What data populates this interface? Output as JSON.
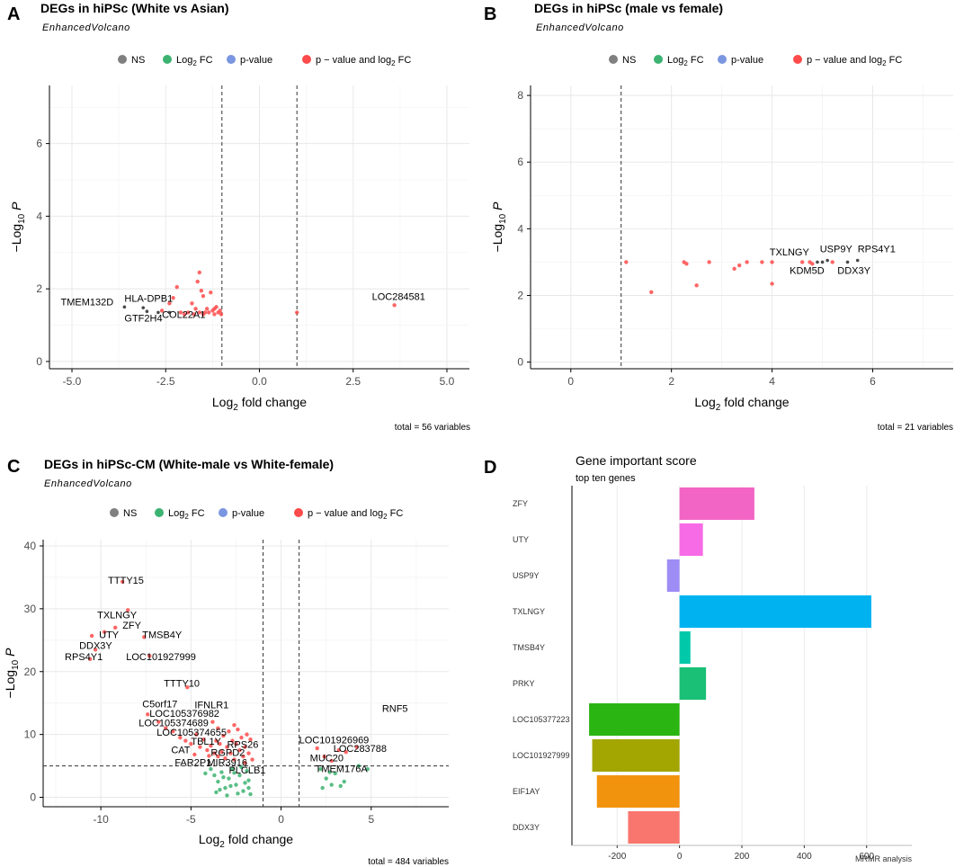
{
  "figure": {
    "panel_letters": [
      "A",
      "B",
      "C",
      "D"
    ],
    "subtitle": "EnhancedVolcano",
    "x_label_pre": "Log",
    "x_label_sub": "2",
    "x_label_post": " fold change",
    "y_label_pre": "−Log",
    "y_label_sub": "10",
    "y_label_post": " P",
    "legend": [
      "NS",
      "Log2 FC",
      "p-value",
      "p − value and log2 FC"
    ],
    "legend_colors": [
      "#808080",
      "#3CB371",
      "#7B96E0",
      "#FF4B4B"
    ]
  },
  "chart_data": [
    {
      "panel": "A",
      "type": "scatter",
      "title": "DEGs in hiPSc (White vs Asian)",
      "xlabel": "Log2 fold change",
      "ylabel": "−Log10 P",
      "xlim": [
        -5.6,
        5.6
      ],
      "ylim": [
        -0.2,
        7.6
      ],
      "xticks": [
        -5.0,
        -2.5,
        0.0,
        2.5,
        5.0
      ],
      "xtick_labels": [
        "-5.0",
        "-2.5",
        "0.0",
        "2.5",
        "5.0"
      ],
      "yticks": [
        0,
        2,
        4,
        6
      ],
      "vlines": [
        -1,
        1
      ],
      "hline": null,
      "caption": "total = 56 variables",
      "points": [
        {
          "x": -3.6,
          "y": 1.5,
          "c": "ns"
        },
        {
          "x": -3.1,
          "y": 1.48,
          "c": "ns"
        },
        {
          "x": -3.0,
          "y": 1.38,
          "c": "ns"
        },
        {
          "x": -2.7,
          "y": 1.35,
          "c": "ns"
        },
        {
          "x": -2.4,
          "y": 1.35,
          "c": "ns"
        },
        {
          "x": -2.6,
          "y": 1.4,
          "c": "sig"
        },
        {
          "x": -2.4,
          "y": 1.6,
          "c": "sig"
        },
        {
          "x": -2.3,
          "y": 1.75,
          "c": "sig"
        },
        {
          "x": -2.2,
          "y": 2.05,
          "c": "sig"
        },
        {
          "x": -2.1,
          "y": 1.35,
          "c": "sig"
        },
        {
          "x": -2.0,
          "y": 1.3,
          "c": "sig"
        },
        {
          "x": -1.9,
          "y": 1.35,
          "c": "sig"
        },
        {
          "x": -1.8,
          "y": 1.6,
          "c": "sig"
        },
        {
          "x": -1.75,
          "y": 1.3,
          "c": "sig"
        },
        {
          "x": -1.7,
          "y": 1.45,
          "c": "sig"
        },
        {
          "x": -1.65,
          "y": 2.2,
          "c": "sig"
        },
        {
          "x": -1.6,
          "y": 2.45,
          "c": "sig"
        },
        {
          "x": -1.55,
          "y": 1.95,
          "c": "sig"
        },
        {
          "x": -1.5,
          "y": 1.8,
          "c": "sig"
        },
        {
          "x": -1.45,
          "y": 1.35,
          "c": "sig"
        },
        {
          "x": -1.4,
          "y": 1.45,
          "c": "sig"
        },
        {
          "x": -1.35,
          "y": 1.35,
          "c": "sig"
        },
        {
          "x": -1.3,
          "y": 1.9,
          "c": "sig"
        },
        {
          "x": -1.25,
          "y": 1.4,
          "c": "sig"
        },
        {
          "x": -1.2,
          "y": 1.3,
          "c": "sig"
        },
        {
          "x": -1.15,
          "y": 1.5,
          "c": "sig"
        },
        {
          "x": -1.1,
          "y": 1.35,
          "c": "sig"
        },
        {
          "x": -1.05,
          "y": 1.4,
          "c": "sig"
        },
        {
          "x": -1.02,
          "y": 1.3,
          "c": "sig"
        },
        {
          "x": -1.5,
          "y": 1.3,
          "c": "sig"
        },
        {
          "x": -1.6,
          "y": 1.35,
          "c": "sig"
        },
        {
          "x": -1.2,
          "y": 1.45,
          "c": "sig"
        },
        {
          "x": 1.0,
          "y": 1.35,
          "c": "sig"
        },
        {
          "x": 3.6,
          "y": 1.55,
          "c": "sig"
        }
      ],
      "labels": [
        {
          "text": "TMEM132D",
          "x": -5.3,
          "y": 1.55
        },
        {
          "text": "HLA-DPB1",
          "x": -3.6,
          "y": 1.65
        },
        {
          "text": "GTF2H4",
          "x": -3.6,
          "y": 1.1
        },
        {
          "text": "COL22A1",
          "x": -2.6,
          "y": 1.2
        },
        {
          "text": "LOC284581",
          "x": 3.0,
          "y": 1.7
        }
      ]
    },
    {
      "panel": "B",
      "type": "scatter",
      "title": "DEGs in hiPSc (male vs female)",
      "xlabel": "Log2 fold change",
      "ylabel": "−Log10 P",
      "xlim": [
        -0.8,
        7.6
      ],
      "ylim": [
        -0.2,
        8.3
      ],
      "xticks": [
        0,
        2,
        4,
        6
      ],
      "xtick_labels": [
        "0",
        "2",
        "4",
        "6"
      ],
      "yticks": [
        0,
        2,
        4,
        6,
        8
      ],
      "vlines": [
        1
      ],
      "hline": null,
      "caption": "total = 21 variables",
      "points": [
        {
          "x": 1.1,
          "y": 3.0,
          "c": "sig"
        },
        {
          "x": 1.6,
          "y": 2.1,
          "c": "sig"
        },
        {
          "x": 2.25,
          "y": 3.0,
          "c": "sig"
        },
        {
          "x": 2.3,
          "y": 2.95,
          "c": "sig"
        },
        {
          "x": 2.5,
          "y": 2.3,
          "c": "sig"
        },
        {
          "x": 2.75,
          "y": 3.0,
          "c": "sig"
        },
        {
          "x": 3.25,
          "y": 2.8,
          "c": "sig"
        },
        {
          "x": 3.35,
          "y": 2.9,
          "c": "sig"
        },
        {
          "x": 3.5,
          "y": 3.0,
          "c": "sig"
        },
        {
          "x": 3.8,
          "y": 3.0,
          "c": "sig"
        },
        {
          "x": 4.0,
          "y": 2.35,
          "c": "sig"
        },
        {
          "x": 4.0,
          "y": 3.0,
          "c": "sig"
        },
        {
          "x": 4.6,
          "y": 3.0,
          "c": "sig"
        },
        {
          "x": 4.75,
          "y": 3.0,
          "c": "sig"
        },
        {
          "x": 4.9,
          "y": 3.0,
          "c": "ns"
        },
        {
          "x": 5.0,
          "y": 3.0,
          "c": "ns"
        },
        {
          "x": 5.1,
          "y": 3.05,
          "c": "ns"
        },
        {
          "x": 5.5,
          "y": 3.0,
          "c": "ns"
        },
        {
          "x": 5.7,
          "y": 3.05,
          "c": "ns"
        },
        {
          "x": 5.2,
          "y": 3.0,
          "c": "sig"
        },
        {
          "x": 4.8,
          "y": 2.95,
          "c": "sig"
        }
      ],
      "labels": [
        {
          "text": "TXLNGY",
          "x": 3.95,
          "y": 3.2
        },
        {
          "text": "USP9Y",
          "x": 4.95,
          "y": 3.3
        },
        {
          "text": "RPS4Y1",
          "x": 5.7,
          "y": 3.3
        },
        {
          "text": "KDM5D",
          "x": 4.35,
          "y": 2.65
        },
        {
          "text": "DDX3Y",
          "x": 5.3,
          "y": 2.65
        }
      ]
    },
    {
      "panel": "C",
      "type": "scatter",
      "title": "DEGs in hiPSc-CM (White-male vs White-female)",
      "xlabel": "Log2 fold change",
      "ylabel": "−Log10 P",
      "xlim": [
        -13.2,
        9.3
      ],
      "ylim": [
        -1.5,
        41
      ],
      "xticks": [
        -10,
        -5,
        0,
        5
      ],
      "xtick_labels": [
        "-10",
        "-5",
        "0",
        "5"
      ],
      "yticks": [
        0,
        10,
        20,
        30,
        40
      ],
      "vlines": [
        -1,
        1
      ],
      "hline": 5.0,
      "caption": "total = 484 variables",
      "points": [
        {
          "x": -8.8,
          "y": 34.3,
          "c": "sig"
        },
        {
          "x": -8.5,
          "y": 29.8,
          "c": "sig"
        },
        {
          "x": -9.2,
          "y": 27.0,
          "c": "sig"
        },
        {
          "x": -9.8,
          "y": 26.3,
          "c": "sig"
        },
        {
          "x": -10.5,
          "y": 25.7,
          "c": "sig"
        },
        {
          "x": -10.6,
          "y": 22.0,
          "c": "sig"
        },
        {
          "x": -10.3,
          "y": 23.5,
          "c": "sig"
        },
        {
          "x": -7.6,
          "y": 25.5,
          "c": "sig"
        },
        {
          "x": -7.3,
          "y": 22.5,
          "c": "sig"
        },
        {
          "x": -5.2,
          "y": 17.5,
          "c": "sig"
        },
        {
          "x": -7.4,
          "y": 13.2,
          "c": "sig"
        },
        {
          "x": -6.8,
          "y": 12.0,
          "c": "sig"
        },
        {
          "x": -6.4,
          "y": 11.0,
          "c": "sig"
        },
        {
          "x": -6.0,
          "y": 10.5,
          "c": "sig"
        },
        {
          "x": -5.6,
          "y": 9.5,
          "c": "sig"
        },
        {
          "x": -5.3,
          "y": 9.0,
          "c": "sig"
        },
        {
          "x": -5.0,
          "y": 8.5,
          "c": "sig"
        },
        {
          "x": -4.7,
          "y": 10.0,
          "c": "sig"
        },
        {
          "x": -4.5,
          "y": 8.0,
          "c": "sig"
        },
        {
          "x": -4.3,
          "y": 9.2,
          "c": "sig"
        },
        {
          "x": -4.1,
          "y": 7.5,
          "c": "sig"
        },
        {
          "x": -4.0,
          "y": 6.6,
          "c": "sig"
        },
        {
          "x": -3.9,
          "y": 8.2,
          "c": "sig"
        },
        {
          "x": -3.8,
          "y": 12.0,
          "c": "sig"
        },
        {
          "x": -3.7,
          "y": 7.0,
          "c": "sig"
        },
        {
          "x": -3.6,
          "y": 9.0,
          "c": "sig"
        },
        {
          "x": -3.5,
          "y": 6.5,
          "c": "sig"
        },
        {
          "x": -3.4,
          "y": 8.5,
          "c": "sig"
        },
        {
          "x": -3.3,
          "y": 7.2,
          "c": "sig"
        },
        {
          "x": -3.2,
          "y": 9.8,
          "c": "sig"
        },
        {
          "x": -3.1,
          "y": 6.2,
          "c": "sig"
        },
        {
          "x": -3.0,
          "y": 8.0,
          "c": "sig"
        },
        {
          "x": -2.9,
          "y": 10.5,
          "c": "sig"
        },
        {
          "x": -2.8,
          "y": 7.0,
          "c": "sig"
        },
        {
          "x": -2.7,
          "y": 9.0,
          "c": "sig"
        },
        {
          "x": -2.6,
          "y": 6.0,
          "c": "sig"
        },
        {
          "x": -2.5,
          "y": 8.5,
          "c": "sig"
        },
        {
          "x": -2.4,
          "y": 10.8,
          "c": "sig"
        },
        {
          "x": -2.3,
          "y": 7.5,
          "c": "sig"
        },
        {
          "x": -2.2,
          "y": 9.5,
          "c": "sig"
        },
        {
          "x": -2.1,
          "y": 6.5,
          "c": "sig"
        },
        {
          "x": -2.0,
          "y": 8.0,
          "c": "sig"
        },
        {
          "x": -1.9,
          "y": 10.0,
          "c": "sig"
        },
        {
          "x": -1.8,
          "y": 7.0,
          "c": "sig"
        },
        {
          "x": -1.7,
          "y": 9.2,
          "c": "sig"
        },
        {
          "x": -1.6,
          "y": 6.0,
          "c": "sig"
        },
        {
          "x": -3.5,
          "y": 11.0,
          "c": "sig"
        },
        {
          "x": -2.6,
          "y": 11.5,
          "c": "sig"
        },
        {
          "x": -4.8,
          "y": 6.8,
          "c": "sig"
        },
        {
          "x": -2.0,
          "y": 5.5,
          "c": "sig"
        },
        {
          "x": -3.9,
          "y": 4.5,
          "c": "fc"
        },
        {
          "x": -3.7,
          "y": 3.5,
          "c": "fc"
        },
        {
          "x": -3.5,
          "y": 2.5,
          "c": "fc"
        },
        {
          "x": -3.3,
          "y": 4.0,
          "c": "fc"
        },
        {
          "x": -3.1,
          "y": 1.5,
          "c": "fc"
        },
        {
          "x": -2.9,
          "y": 3.0,
          "c": "fc"
        },
        {
          "x": -2.7,
          "y": 4.5,
          "c": "fc"
        },
        {
          "x": -2.5,
          "y": 2.0,
          "c": "fc"
        },
        {
          "x": -2.3,
          "y": 3.5,
          "c": "fc"
        },
        {
          "x": -2.1,
          "y": 1.0,
          "c": "fc"
        },
        {
          "x": -1.9,
          "y": 4.2,
          "c": "fc"
        },
        {
          "x": -1.8,
          "y": 2.7,
          "c": "fc"
        },
        {
          "x": -1.7,
          "y": 0.5,
          "c": "fc"
        },
        {
          "x": -3.6,
          "y": 0.8,
          "c": "fc"
        },
        {
          "x": -3.0,
          "y": 0.3,
          "c": "fc"
        },
        {
          "x": -2.4,
          "y": 0.6,
          "c": "fc"
        },
        {
          "x": -2.2,
          "y": 4.8,
          "c": "fc"
        },
        {
          "x": -2.8,
          "y": 1.8,
          "c": "fc"
        },
        {
          "x": -3.2,
          "y": 3.2,
          "c": "fc"
        },
        {
          "x": -4.2,
          "y": 3.8,
          "c": "fc"
        },
        {
          "x": -1.8,
          "y": 1.5,
          "c": "fc"
        },
        {
          "x": -2.6,
          "y": 3.9,
          "c": "fc"
        },
        {
          "x": -2.0,
          "y": 2.3,
          "c": "fc"
        },
        {
          "x": -3.4,
          "y": 1.2,
          "c": "fc"
        },
        {
          "x": 2.0,
          "y": 7.8,
          "c": "sig"
        },
        {
          "x": 2.4,
          "y": 6.5,
          "c": "sig"
        },
        {
          "x": 3.2,
          "y": 7.5,
          "c": "sig"
        },
        {
          "x": 3.6,
          "y": 7.2,
          "c": "sig"
        },
        {
          "x": 4.2,
          "y": 8.0,
          "c": "sig"
        },
        {
          "x": 2.8,
          "y": 5.8,
          "c": "sig"
        },
        {
          "x": 2.2,
          "y": 4.5,
          "c": "fc"
        },
        {
          "x": 2.5,
          "y": 3.0,
          "c": "fc"
        },
        {
          "x": 2.8,
          "y": 2.0,
          "c": "fc"
        },
        {
          "x": 3.0,
          "y": 3.8,
          "c": "fc"
        },
        {
          "x": 3.5,
          "y": 2.5,
          "c": "fc"
        },
        {
          "x": 4.3,
          "y": 5.0,
          "c": "fc"
        },
        {
          "x": 4.8,
          "y": 4.5,
          "c": "fc"
        },
        {
          "x": 2.3,
          "y": 1.5,
          "c": "fc"
        },
        {
          "x": 2.7,
          "y": 4.0,
          "c": "fc"
        },
        {
          "x": 3.3,
          "y": 1.8,
          "c": "fc"
        }
      ],
      "labels": [
        {
          "text": "TTTY15",
          "x": -9.6,
          "y": 34.0
        },
        {
          "text": "TXLNGY",
          "x": -10.2,
          "y": 28.5
        },
        {
          "text": "ZFY",
          "x": -8.8,
          "y": 26.8
        },
        {
          "text": "UTY",
          "x": -10.1,
          "y": 25.3
        },
        {
          "text": "TMSB4Y",
          "x": -7.7,
          "y": 25.3
        },
        {
          "text": "DDX3Y",
          "x": -11.2,
          "y": 23.6
        },
        {
          "text": "RPS4Y1",
          "x": -12.0,
          "y": 21.8
        },
        {
          "text": "LOC101927999",
          "x": -8.6,
          "y": 21.8
        },
        {
          "text": "TTTY10",
          "x": -6.5,
          "y": 17.6
        },
        {
          "text": "RNF5",
          "x": 5.6,
          "y": 13.6
        },
        {
          "text": "C5orf17",
          "x": -7.7,
          "y": 14.3
        },
        {
          "text": "IFNLR1",
          "x": -4.8,
          "y": 14.2
        },
        {
          "text": "LOC105376982",
          "x": -7.3,
          "y": 12.8
        },
        {
          "text": "LOC105374689",
          "x": -7.9,
          "y": 11.3
        },
        {
          "text": "LOC105374655",
          "x": -6.9,
          "y": 9.8
        },
        {
          "text": "TBL1Y",
          "x": -5.0,
          "y": 8.4
        },
        {
          "text": "RPS26",
          "x": -3.0,
          "y": 7.9
        },
        {
          "text": "CAT",
          "x": -6.1,
          "y": 7.0
        },
        {
          "text": "RGPD2",
          "x": -3.9,
          "y": 6.6
        },
        {
          "text": "FAR2P1",
          "x": -5.9,
          "y": 5.0
        },
        {
          "text": "MIR3916",
          "x": -4.1,
          "y": 5.0
        },
        {
          "text": "PLCLB1",
          "x": -2.9,
          "y": 3.8
        },
        {
          "text": "LOC101926969",
          "x": 1.0,
          "y": 8.6
        },
        {
          "text": "LOC283788",
          "x": 2.9,
          "y": 7.2
        },
        {
          "text": "MUC20",
          "x": 1.6,
          "y": 5.7
        },
        {
          "text": "TMEM176A",
          "x": 1.9,
          "y": 4.0
        }
      ]
    },
    {
      "panel": "D",
      "type": "bar",
      "orientation": "horizontal",
      "title": "Gene important score",
      "subtitle": "top ten genes",
      "xlabel": "MRMR analysis",
      "xlim": [
        -345,
        745
      ],
      "xticks": [
        -200,
        0,
        200,
        400,
        600
      ],
      "categories": [
        "ZFY",
        "UTY",
        "USP9Y",
        "TXLNGY",
        "TMSB4Y",
        "PRKY",
        "LOC105377223",
        "LOC101927999",
        "EIF1AY",
        "DDX3Y"
      ],
      "values": [
        240,
        75,
        -40,
        615,
        35,
        85,
        -290,
        -280,
        -265,
        -165
      ],
      "colors": [
        "#F265C4",
        "#F86BE6",
        "#9D8DF5",
        "#00B3F0",
        "#00C8A9",
        "#19C076",
        "#2AB512",
        "#A3A500",
        "#F2930E",
        "#F8766D"
      ]
    }
  ]
}
